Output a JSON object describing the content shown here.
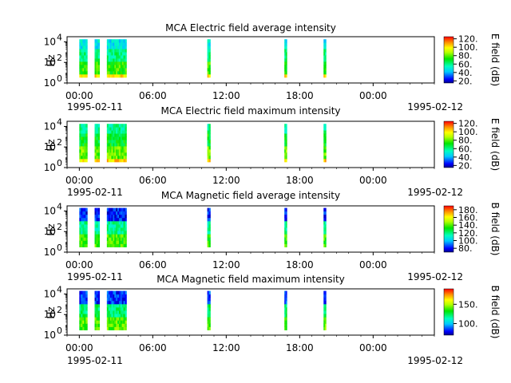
{
  "chart_data": [
    {
      "type": "heatmap",
      "title": "MCA  Electric field average intensity",
      "ylabel": "Hz",
      "colorbar_label": "E field (dB)",
      "colorbar_range": [
        15,
        125
      ],
      "colorbar_ticks": [
        "120.",
        "100.",
        "80.",
        "60.",
        "40.",
        "20."
      ],
      "colorbar_tick_values": [
        120,
        100,
        80,
        60,
        40,
        20
      ],
      "palette": "red-orange-yellow-green-cyan-blue-navy"
    },
    {
      "type": "heatmap",
      "title": "MCA  Electric field maximum intensity",
      "ylabel": "Hz",
      "colorbar_label": "E field (dB)",
      "colorbar_range": [
        15,
        125
      ],
      "colorbar_ticks": [
        "120.",
        "100.",
        "80.",
        "60.",
        "40.",
        "20."
      ],
      "colorbar_tick_values": [
        120,
        100,
        80,
        60,
        40,
        20
      ],
      "palette": "red-orange-yellow-green-cyan-blue-navy"
    },
    {
      "type": "heatmap",
      "title": "MCA  Magnetic field average intensity",
      "ylabel": "Hz",
      "colorbar_label": "B field (dB)",
      "colorbar_range": [
        70,
        190
      ],
      "colorbar_ticks": [
        "180.",
        "160.",
        "140.",
        "120.",
        "100.",
        "80."
      ],
      "colorbar_tick_values": [
        180,
        160,
        140,
        120,
        100,
        80
      ],
      "palette": "red-orange-yellow-green-cyan-blue-navy"
    },
    {
      "type": "heatmap",
      "title": "MCA  Magnetic field maximum intensity",
      "ylabel": "Hz",
      "colorbar_label": "B field (dB)",
      "colorbar_range": [
        70,
        190
      ],
      "colorbar_ticks": [
        "150.",
        "100."
      ],
      "colorbar_tick_values": [
        150,
        100
      ],
      "palette": "red-orange-yellow-green-cyan-blue-navy"
    }
  ],
  "shared_axes": {
    "x_range_hours": [
      -1,
      29
    ],
    "x_ticks": [
      "00:00",
      "06:00",
      "12:00",
      "18:00",
      "00:00"
    ],
    "x_tick_hours": [
      0,
      6,
      12,
      18,
      24
    ],
    "x_date_left": "1995-02-11",
    "x_date_right": "1995-02-12",
    "y_scale": "log",
    "y_range_exp": [
      0,
      4.5
    ],
    "y_ticks": [
      {
        "base": "10",
        "exp": "4"
      },
      {
        "base": "10",
        "exp": "2"
      },
      {
        "base": "10",
        "exp": "0"
      }
    ],
    "y_tick_exps": [
      4,
      2,
      0
    ],
    "data_intervals_hours": [
      [
        0.0,
        0.65
      ],
      [
        1.25,
        1.65
      ],
      [
        2.25,
        3.85
      ],
      [
        10.45,
        10.7
      ],
      [
        16.75,
        16.95
      ],
      [
        19.95,
        20.15
      ]
    ]
  }
}
